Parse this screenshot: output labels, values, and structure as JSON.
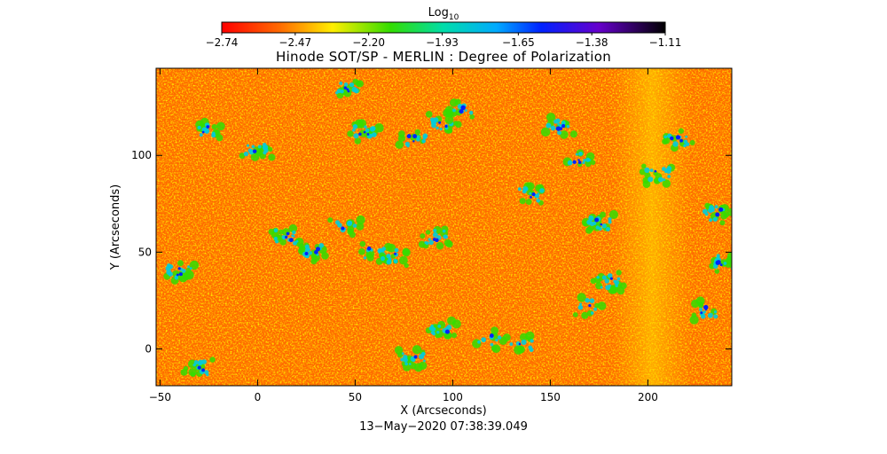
{
  "chart_data": {
    "type": "heatmap",
    "title": "Hinode SOT/SP - MERLIN : Degree of Polarization",
    "xlabel": "X (Arcseconds)",
    "ylabel": "Y (Arcseconds)",
    "xlim": [
      -52,
      243
    ],
    "ylim": [
      -19,
      145
    ],
    "x_ticks": [
      -50,
      0,
      50,
      100,
      150,
      200
    ],
    "y_ticks": [
      0,
      50,
      100
    ],
    "colorbar": {
      "title_base": "Log",
      "title_sub": "10",
      "min": -2.74,
      "max": -1.11,
      "ticks": [
        -2.74,
        -2.47,
        -2.2,
        -1.93,
        -1.65,
        -1.38,
        -1.11
      ],
      "tick_labels": [
        "−2.74",
        "−2.47",
        "−2.20",
        "−1.93",
        "−1.65",
        "−1.38",
        "−1.11"
      ],
      "colormap": "rainbow (red → yellow → green → cyan → blue → violet → black)"
    },
    "dominant_value_range": [
      -2.74,
      -2.4
    ],
    "elevated_band_x_range": [
      195,
      215
    ],
    "timestamp": "13−May−2020 07:38:39.049",
    "colors": {
      "red": "#ff1a00",
      "orange": "#ff7700",
      "yellow": "#ffee00",
      "green": "#33dd00",
      "cyan": "#00dddd",
      "blue": "#0022ff",
      "violet": "#6600cc",
      "black": "#000000"
    }
  }
}
